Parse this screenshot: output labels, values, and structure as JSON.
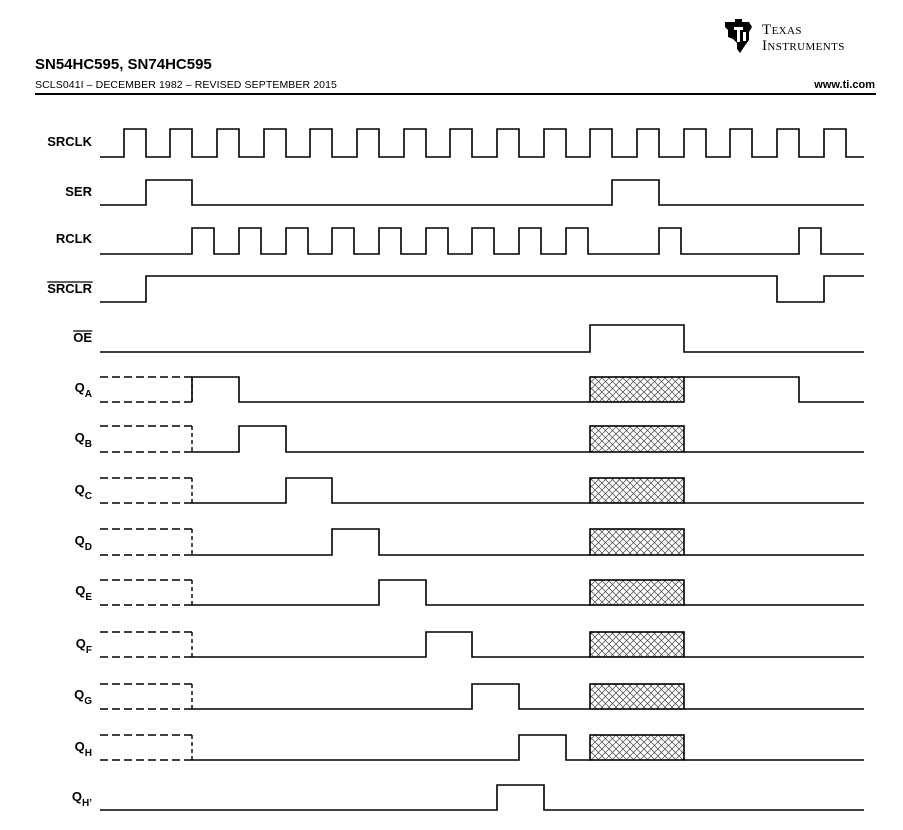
{
  "header": {
    "part_title": "SN54HC595, SN74HC595",
    "doc_code": "SCLS041I – DECEMBER 1982 – REVISED SEPTEMBER 2015",
    "website": "www.ti.com",
    "logo_line1": "Texas",
    "logo_line2": "Instruments",
    "logo_icon": "ti-state-logo-icon"
  },
  "timing_diagram": {
    "signals": [
      {
        "id": "srclk",
        "label": "SRCLK",
        "overline": false,
        "sub": ""
      },
      {
        "id": "ser",
        "label": "SER",
        "overline": false,
        "sub": ""
      },
      {
        "id": "rclk",
        "label": "RCLK",
        "overline": false,
        "sub": ""
      },
      {
        "id": "srclr",
        "label": "SRCLR",
        "overline": true,
        "sub": ""
      },
      {
        "id": "oe",
        "label": "OE",
        "overline": true,
        "sub": ""
      },
      {
        "id": "qa",
        "label": "Q",
        "overline": false,
        "sub": "A"
      },
      {
        "id": "qb",
        "label": "Q",
        "overline": false,
        "sub": "B"
      },
      {
        "id": "qc",
        "label": "Q",
        "overline": false,
        "sub": "C"
      },
      {
        "id": "qd",
        "label": "Q",
        "overline": false,
        "sub": "D"
      },
      {
        "id": "qe",
        "label": "Q",
        "overline": false,
        "sub": "E"
      },
      {
        "id": "qf",
        "label": "Q",
        "overline": false,
        "sub": "F"
      },
      {
        "id": "qg",
        "label": "Q",
        "overline": false,
        "sub": "G"
      },
      {
        "id": "qh",
        "label": "Q",
        "overline": false,
        "sub": "H"
      },
      {
        "id": "qhp",
        "label": "Q",
        "overline": false,
        "sub": "H’"
      }
    ]
  }
}
